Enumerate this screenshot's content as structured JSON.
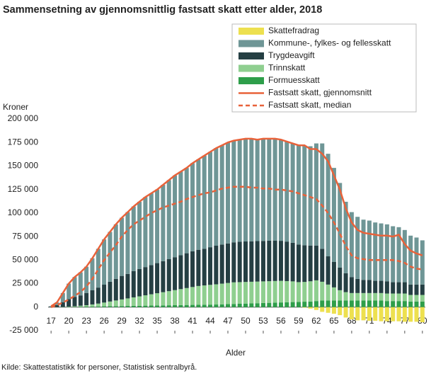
{
  "chart_data": {
    "type": "stacked_bar_line",
    "title": "Sammensetning av gjennomsnittlig fastsatt skatt etter alder, 2018",
    "y_label": "Kroner",
    "x_label": "Alder",
    "source": "Kilde: Skattestatistikk for personer, Statistisk sentralbyrå.",
    "x": [
      17,
      18,
      19,
      20,
      21,
      22,
      23,
      24,
      25,
      26,
      27,
      28,
      29,
      30,
      31,
      32,
      33,
      34,
      35,
      36,
      37,
      38,
      39,
      40,
      41,
      42,
      43,
      44,
      45,
      46,
      47,
      48,
      49,
      50,
      51,
      52,
      53,
      54,
      55,
      56,
      57,
      58,
      59,
      60,
      61,
      62,
      63,
      64,
      65,
      66,
      67,
      68,
      69,
      70,
      71,
      72,
      73,
      74,
      75,
      76,
      77,
      78,
      79,
      80
    ],
    "xlim": [
      16.5,
      80.5
    ],
    "xticks": [
      17,
      20,
      23,
      26,
      29,
      32,
      35,
      38,
      41,
      44,
      47,
      50,
      53,
      56,
      59,
      62,
      65,
      68,
      71,
      74,
      77,
      80
    ],
    "ylim": [
      -25000,
      200000
    ],
    "yticks": [
      {
        "value": -25000,
        "label": "-25 000"
      },
      0,
      {
        "value": 25000,
        "label": "25 000"
      },
      {
        "value": 50000,
        "label": "50 000"
      },
      {
        "value": 75000,
        "label": "75 000"
      },
      {
        "value": 100000,
        "label": "100 000"
      },
      {
        "value": 125000,
        "label": "125 000"
      },
      {
        "value": 150000,
        "label": "150 000"
      },
      {
        "value": 175000,
        "label": "175 000"
      },
      {
        "value": 200000,
        "label": "200 000"
      }
    ],
    "grid": false,
    "legend": "top-right",
    "series": [
      {
        "name": "Skattefradrag",
        "kind": "bar",
        "color": "#ede04f",
        "values": [
          0,
          0,
          0,
          0,
          0,
          0,
          0,
          0,
          0,
          0,
          0,
          0,
          0,
          0,
          0,
          0,
          0,
          0,
          0,
          0,
          0,
          0,
          0,
          0,
          0,
          0,
          0,
          0,
          0,
          0,
          0,
          0,
          0,
          0,
          0,
          0,
          0,
          0,
          0,
          0,
          0,
          0,
          0,
          -500,
          -1500,
          -3000,
          -5000,
          -6000,
          -7000,
          -8500,
          -11000,
          -13000,
          -14000,
          -14000,
          -14500,
          -14500,
          -15000,
          -15000,
          -15000,
          -15000,
          -15500,
          -15500,
          -15500,
          -16000
        ]
      },
      {
        "name": "Kommune-, fylkes- og fellesskatt",
        "kind": "bar",
        "color": "#6f9696",
        "values": [
          500,
          2900,
          9700,
          16400,
          21000,
          24500,
          27900,
          34100,
          41200,
          48100,
          53000,
          57900,
          61800,
          65700,
          68600,
          71500,
          74400,
          76300,
          78200,
          81100,
          84000,
          86900,
          88800,
          90700,
          93600,
          96000,
          98900,
          101300,
          103700,
          105500,
          107300,
          108100,
          108400,
          109200,
          109000,
          107800,
          108600,
          108400,
          108200,
          107500,
          106300,
          105600,
          105400,
          105200,
          105500,
          108500,
          112000,
          109000,
          100000,
          90000,
          76000,
          69000,
          66000,
          64000,
          63000,
          62000,
          61000,
          60500,
          59500,
          58500,
          55500,
          52000,
          50000,
          47000
        ]
      },
      {
        "name": "Trygdeavgift",
        "kind": "bar",
        "color": "#253f43",
        "values": [
          500,
          2000,
          5000,
          8000,
          10000,
          11000,
          13000,
          15000,
          17000,
          19000,
          21000,
          23000,
          25000,
          26000,
          28000,
          29000,
          30000,
          31000,
          32000,
          33000,
          34000,
          35000,
          36000,
          37000,
          38000,
          38500,
          39000,
          40000,
          41000,
          41500,
          42000,
          42500,
          43000,
          43000,
          43000,
          43000,
          43000,
          43000,
          43000,
          42500,
          42000,
          41000,
          40000,
          39000,
          38000,
          37000,
          35000,
          30000,
          27000,
          24000,
          20000,
          17000,
          15000,
          14000,
          14000,
          13000,
          13000,
          13000,
          12000,
          12000,
          12000,
          11000,
          11000,
          11000
        ]
      },
      {
        "name": "Trinnskatt",
        "kind": "bar",
        "color": "#8fcf90",
        "values": [
          0,
          0,
          100,
          300,
          600,
          1000,
          1500,
          2200,
          3000,
          4000,
          5000,
          6000,
          7000,
          8000,
          9000,
          10000,
          11000,
          12000,
          13000,
          14000,
          15000,
          16000,
          17000,
          18000,
          19000,
          20000,
          20500,
          21000,
          21500,
          22000,
          22500,
          23000,
          23000,
          23000,
          23000,
          23000,
          23000,
          23000,
          23000,
          23000,
          22500,
          22000,
          21000,
          21000,
          21500,
          22000,
          20000,
          17000,
          14000,
          11000,
          9000,
          8000,
          8000,
          8000,
          8000,
          8000,
          8000,
          8000,
          8000,
          8000,
          8000,
          7000,
          7000,
          7000
        ]
      },
      {
        "name": "Formuesskatt",
        "kind": "bar",
        "color": "#2e9e4a",
        "values": [
          0,
          100,
          200,
          300,
          400,
          500,
          600,
          700,
          800,
          900,
          1000,
          1100,
          1200,
          1300,
          1400,
          1500,
          1600,
          1700,
          1800,
          1900,
          2000,
          2100,
          2200,
          2300,
          2400,
          2500,
          2600,
          2700,
          2800,
          3000,
          3200,
          3400,
          3600,
          3800,
          4000,
          4200,
          4400,
          4600,
          4800,
          5000,
          5200,
          5400,
          5600,
          5800,
          6000,
          6500,
          7000,
          7000,
          7000,
          7000,
          7000,
          7000,
          7000,
          7000,
          7000,
          7000,
          7000,
          6500,
          6500,
          6500,
          6500,
          6000,
          6000,
          6000
        ]
      },
      {
        "name": "Fastsatt skatt, gjennomsnitt",
        "kind": "line",
        "line_style": "solid",
        "color": "#e8623a",
        "values": [
          1000,
          5000,
          15000,
          25000,
          32000,
          37000,
          43000,
          52000,
          62000,
          72000,
          80000,
          88000,
          95000,
          101000,
          107000,
          112000,
          117000,
          121000,
          125000,
          130000,
          135000,
          140000,
          144000,
          148000,
          153000,
          157000,
          161000,
          165000,
          169000,
          172000,
          175000,
          177000,
          178000,
          179000,
          179000,
          178000,
          179000,
          179000,
          179000,
          178000,
          176000,
          174000,
          172000,
          172000,
          168000,
          168000,
          163000,
          155000,
          140000,
          125000,
          105000,
          90000,
          82000,
          79000,
          78000,
          77000,
          76000,
          76000,
          75000,
          77000,
          67000,
          60000,
          57000,
          55000
        ]
      },
      {
        "name": "Fastsatt skatt, median",
        "kind": "line",
        "line_style": "dashed",
        "color": "#e8623a",
        "values": [
          0,
          2000,
          5000,
          8000,
          12000,
          16000,
          22000,
          30000,
          40000,
          50000,
          58000,
          66000,
          75000,
          82000,
          88000,
          92000,
          96000,
          100000,
          103000,
          106000,
          108000,
          110000,
          112000,
          115000,
          117000,
          119000,
          121000,
          122000,
          124000,
          126000,
          127000,
          128000,
          128000,
          128000,
          127000,
          127000,
          126000,
          126000,
          125000,
          125000,
          124000,
          123000,
          121000,
          119000,
          117000,
          115000,
          108000,
          100000,
          90000,
          78000,
          65000,
          55000,
          52000,
          51000,
          50000,
          50000,
          50000,
          50000,
          50000,
          49000,
          47000,
          43000,
          41000,
          40000
        ]
      }
    ]
  }
}
